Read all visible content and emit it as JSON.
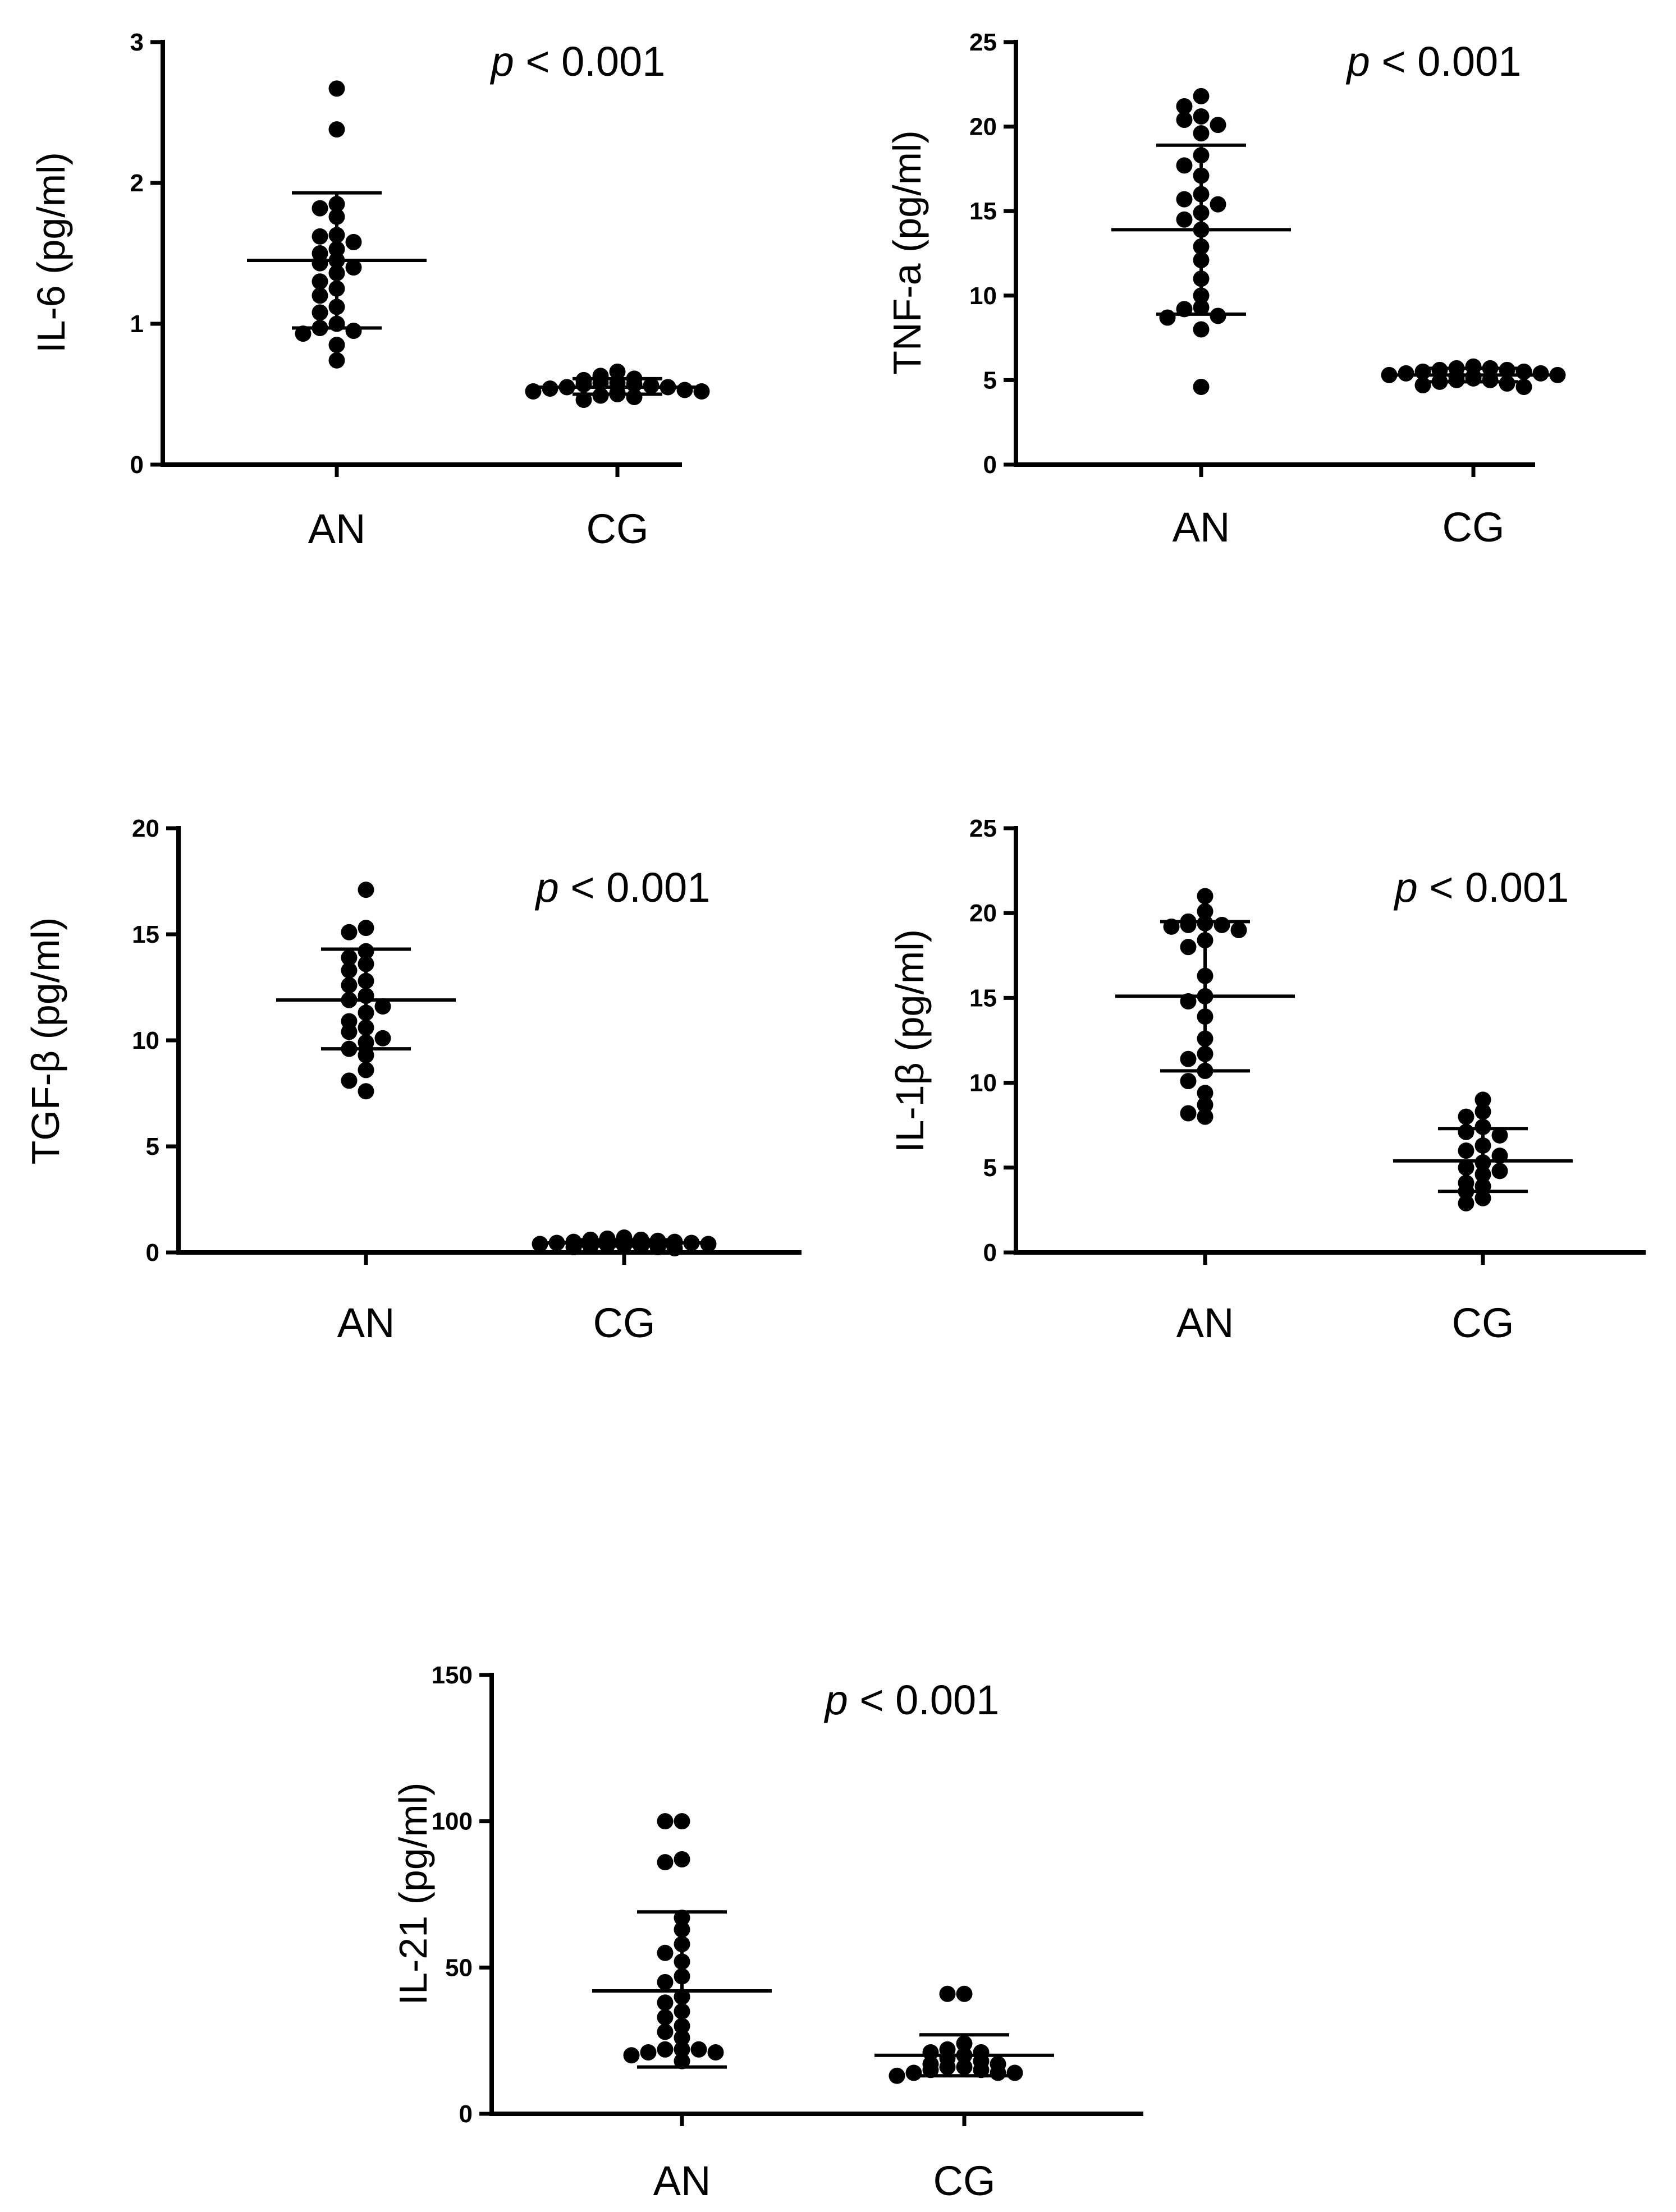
{
  "chart_data": [
    {
      "type": "scatter",
      "id": "il6",
      "ylabel": "IL-6 (pg/ml)",
      "ylim": [
        0,
        3
      ],
      "yticks": [
        0,
        1,
        2,
        3
      ],
      "categories": [
        "AN",
        "CG"
      ],
      "annotation": {
        "p": "p",
        "rest": " < 0.001"
      },
      "groups": [
        {
          "name": "AN",
          "mean": 1.45,
          "sd_low": 0.97,
          "sd_high": 1.93,
          "points": [
            2.67,
            2.38,
            1.85,
            1.82,
            1.76,
            1.63,
            1.62,
            1.58,
            1.53,
            1.5,
            1.45,
            1.43,
            1.4,
            1.36,
            1.3,
            1.25,
            1.2,
            1.12,
            1.08,
            1.0,
            0.97,
            0.95,
            0.93,
            0.85,
            0.74
          ]
        },
        {
          "name": "CG",
          "mean": 0.55,
          "sd_low": 0.5,
          "sd_high": 0.61,
          "points": [
            0.66,
            0.63,
            0.61,
            0.6,
            0.58,
            0.58,
            0.57,
            0.57,
            0.56,
            0.55,
            0.55,
            0.54,
            0.53,
            0.52,
            0.52,
            0.51,
            0.5,
            0.49,
            0.48,
            0.46
          ]
        }
      ]
    },
    {
      "type": "scatter",
      "id": "tnfa",
      "ylabel": "TNF-a (pg/ml)",
      "ylim": [
        0,
        25
      ],
      "yticks": [
        0,
        5,
        10,
        15,
        20,
        25
      ],
      "categories": [
        "AN",
        "CG"
      ],
      "annotation": {
        "p": "p",
        "rest": " < 0.001"
      },
      "groups": [
        {
          "name": "AN",
          "mean": 13.9,
          "sd_low": 8.9,
          "sd_high": 18.9,
          "points": [
            21.8,
            21.2,
            20.6,
            20.4,
            20.1,
            19.6,
            18.3,
            17.7,
            17.1,
            16.0,
            15.7,
            15.4,
            14.9,
            14.5,
            13.9,
            12.9,
            12.1,
            11.0,
            10.0,
            9.3,
            9.2,
            8.8,
            8.7,
            8.0,
            4.6
          ]
        },
        {
          "name": "CG",
          "mean": 5.3,
          "sd_low": 4.9,
          "sd_high": 5.7,
          "points": [
            5.8,
            5.7,
            5.7,
            5.6,
            5.6,
            5.5,
            5.5,
            5.4,
            5.4,
            5.3,
            5.3,
            5.2,
            5.2,
            5.1,
            5.0,
            5.0,
            4.9,
            4.8,
            4.7,
            4.6
          ]
        }
      ]
    },
    {
      "type": "scatter",
      "id": "tgfb",
      "ylabel": "TGF-β (pg/ml)",
      "ylim": [
        0,
        20
      ],
      "yticks": [
        0,
        5,
        10,
        15,
        20
      ],
      "categories": [
        "AN",
        "CG"
      ],
      "annotation": {
        "p": "p",
        "rest": " < 0.001"
      },
      "groups": [
        {
          "name": "AN",
          "mean": 11.9,
          "sd_low": 9.6,
          "sd_high": 14.3,
          "points": [
            17.1,
            15.3,
            15.1,
            14.2,
            13.9,
            13.6,
            13.3,
            12.8,
            12.6,
            12.1,
            11.9,
            11.6,
            11.3,
            10.9,
            10.6,
            10.4,
            10.1,
            9.9,
            9.6,
            9.3,
            8.6,
            8.1,
            7.6
          ]
        },
        {
          "name": "CG",
          "mean": 0.45,
          "sd_low": 0.3,
          "sd_high": 0.6,
          "points": [
            0.7,
            0.65,
            0.6,
            0.6,
            0.55,
            0.5,
            0.5,
            0.45,
            0.45,
            0.4,
            0.4,
            0.35,
            0.35,
            0.3,
            0.3,
            0.25,
            0.25,
            0.2
          ]
        }
      ]
    },
    {
      "type": "scatter",
      "id": "il1b",
      "ylabel": "IL-1β (pg/ml)",
      "ylim": [
        0,
        25
      ],
      "yticks": [
        0,
        5,
        10,
        15,
        20,
        25
      ],
      "categories": [
        "AN",
        "CG"
      ],
      "annotation": {
        "p": "p",
        "rest": " < 0.001"
      },
      "groups": [
        {
          "name": "AN",
          "mean": 15.1,
          "sd_low": 10.7,
          "sd_high": 19.5,
          "points": [
            21.0,
            20.1,
            19.5,
            19.4,
            19.3,
            19.3,
            19.2,
            19.0,
            18.4,
            18.0,
            16.3,
            15.1,
            14.8,
            13.9,
            12.6,
            11.7,
            11.4,
            10.7,
            10.1,
            9.4,
            8.7,
            8.2,
            8.0
          ]
        },
        {
          "name": "CG",
          "mean": 5.4,
          "sd_low": 3.6,
          "sd_high": 7.3,
          "points": [
            9.0,
            8.3,
            8.0,
            7.4,
            7.1,
            6.9,
            6.3,
            6.0,
            5.7,
            5.3,
            5.0,
            4.8,
            4.6,
            4.1,
            3.9,
            3.6,
            3.2,
            2.9
          ]
        }
      ]
    },
    {
      "type": "scatter",
      "id": "il21",
      "ylabel": "IL-21 (pg/ml)",
      "ylim": [
        0,
        150
      ],
      "yticks": [
        0,
        50,
        100,
        150
      ],
      "categories": [
        "AN",
        "CG"
      ],
      "annotation": {
        "p": "p",
        "rest": " < 0.001"
      },
      "groups": [
        {
          "name": "AN",
          "mean": 42,
          "sd_low": 16,
          "sd_high": 69,
          "points": [
            100,
            100,
            87,
            86,
            67,
            63,
            58,
            55,
            52,
            47,
            45,
            40,
            38,
            35,
            33,
            30,
            28,
            26,
            22,
            22,
            22,
            21,
            21,
            20,
            18
          ]
        },
        {
          "name": "CG",
          "mean": 20,
          "sd_low": 13,
          "sd_high": 27,
          "points": [
            41,
            41,
            24,
            22,
            21,
            21,
            20,
            19,
            18,
            17,
            17,
            16,
            16,
            15,
            15,
            14,
            14,
            14,
            13
          ]
        }
      ]
    }
  ]
}
